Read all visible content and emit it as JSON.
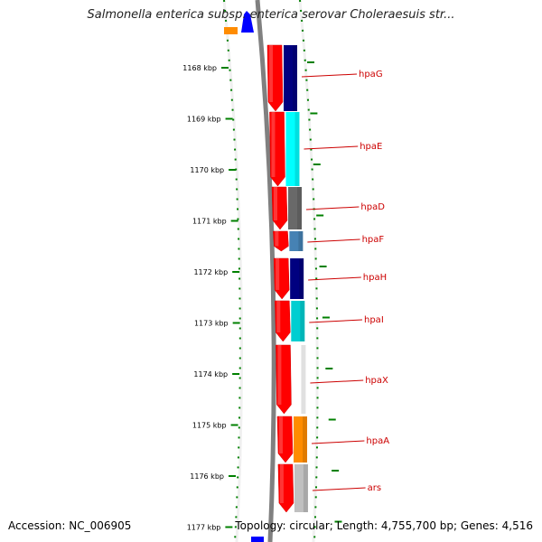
{
  "title": "Salmonella enterica subsp. enterica serovar Choleraesuis str...",
  "footer": {
    "accession": "Accession: NC_006905",
    "summary": "Topology: circular; Length: 4,755,700 bp; Genes: 4,516"
  },
  "ruler": {
    "ticks": [
      "1168 kbp",
      "1169 kbp",
      "1170 kbp",
      "1171 kbp",
      "1172 kbp",
      "1173 kbp",
      "1174 kbp",
      "1175 kbp",
      "1176 kbp",
      "1177 kbp"
    ]
  },
  "genes": [
    {
      "name": "hpaG",
      "color": "#000080"
    },
    {
      "name": "hpaE",
      "color": "#00ffff"
    },
    {
      "name": "hpaD",
      "color": "#696969"
    },
    {
      "name": "hpaF",
      "color": "#4682b4"
    },
    {
      "name": "hpaH",
      "color": "#000080"
    },
    {
      "name": "hpaI",
      "color": "#00ced1"
    },
    {
      "name": "hpaX",
      "color": "#ffffff"
    },
    {
      "name": "hpaA",
      "color": "#ff8c00"
    },
    {
      "name": "ars",
      "color": "#c0c0c0"
    }
  ],
  "colors": {
    "cds": "#ff0000",
    "backbone": "#808080",
    "ruler": "#008000",
    "label": "#cc0000"
  }
}
